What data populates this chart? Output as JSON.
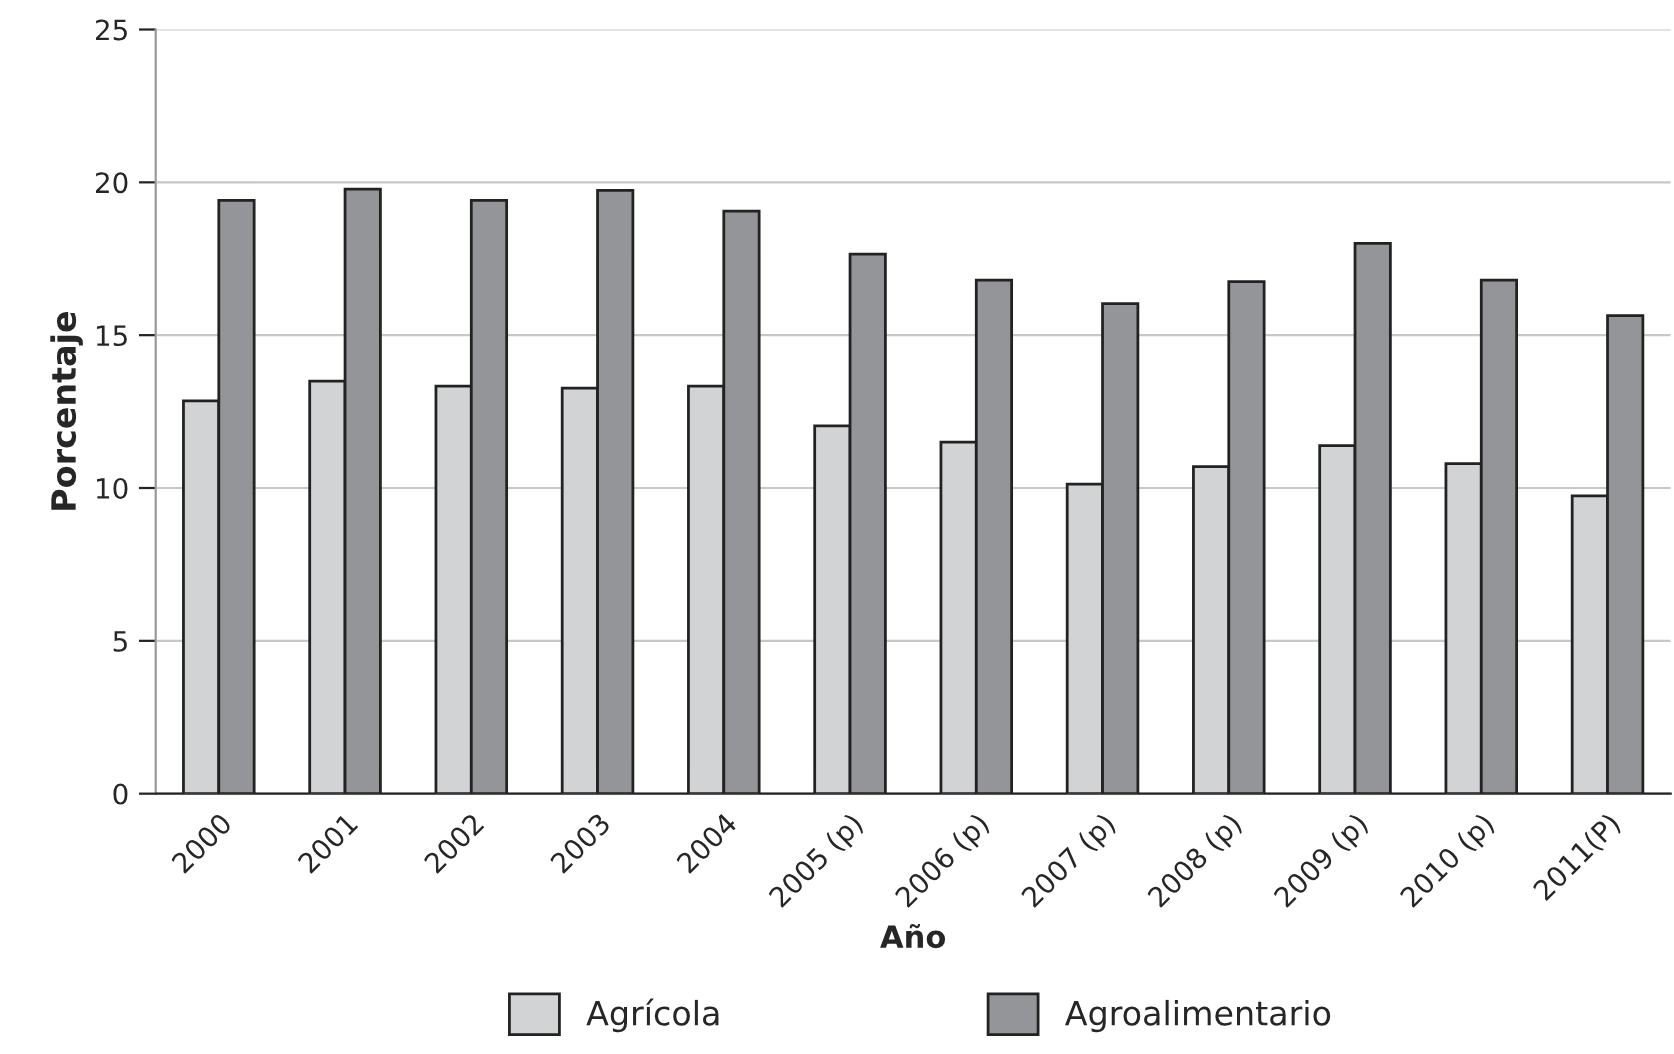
{
  "chart_data": {
    "type": "bar",
    "xlabel": "Año",
    "ylabel": "Porcentaje",
    "categories": [
      "2000",
      "2001",
      "2002",
      "2003",
      "2004",
      "2005 (p)",
      "2006 (p)",
      "2007 (p)",
      "2008 (p)",
      "2009 (p)",
      "2010 (p)",
      "2011(P)"
    ],
    "series": [
      {
        "name": "Agrícola",
        "color": "#d2d3d5",
        "values": [
          12.85,
          13.5,
          13.33,
          13.27,
          13.33,
          12.03,
          11.5,
          10.13,
          10.7,
          11.39,
          10.8,
          9.74
        ]
      },
      {
        "name": "Agroalimentario",
        "color": "#939598",
        "values": [
          19.41,
          19.78,
          19.41,
          19.74,
          19.06,
          17.65,
          16.8,
          16.03,
          16.75,
          18.0,
          16.8,
          15.64
        ]
      }
    ],
    "ylim": [
      0,
      25
    ],
    "yticks": [
      0,
      5,
      10,
      15,
      20,
      25
    ],
    "grid": "y",
    "legend": "bottom"
  }
}
